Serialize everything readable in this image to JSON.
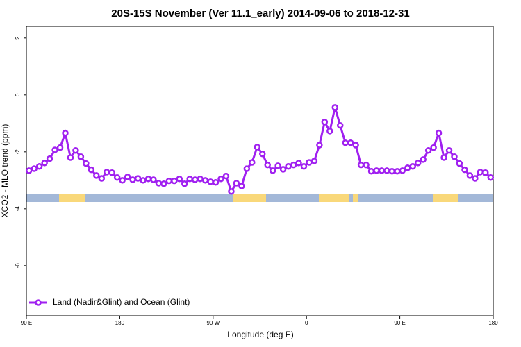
{
  "chart_data": {
    "type": "line",
    "title": "20S-15S November (Ver 11.1_early)   2014-09-06 to 2018-12-31",
    "x_label": "Longitude (deg E)",
    "y_label": "XCO2 - MLO trend (ppm)",
    "xlim": [
      90,
      540
    ],
    "ylim": [
      -7.76,
      2.41
    ],
    "xticks": [
      {
        "value": 90,
        "label": "90 E"
      },
      180,
      {
        "value": 270,
        "label": "90 W"
      },
      {
        "value": 360,
        "label": "0"
      },
      {
        "value": 450,
        "label": "90 E"
      },
      {
        "value": 540,
        "label": "180"
      }
    ],
    "yticks": [
      2,
      0,
      -2,
      -4,
      -6
    ],
    "legend": "bottom-left",
    "x": [
      92.5,
      97.5,
      102.5,
      107.5,
      112.5,
      117.5,
      122.5,
      127.5,
      132.5,
      137.5,
      142.5,
      147.5,
      152.5,
      157.5,
      162.5,
      167.5,
      172.5,
      177.5,
      182.5,
      187.5,
      192.5,
      197.5,
      202.5,
      207.5,
      212.5,
      217.5,
      222.5,
      227.5,
      232.5,
      237.5,
      242.5,
      247.5,
      252.5,
      257.5,
      262.5,
      267.5,
      272.5,
      277.5,
      282.5,
      287.5,
      292.5,
      297.5,
      302.5,
      307.5,
      312.5,
      317.5,
      322.5,
      327.5,
      332.5,
      337.5,
      342.5,
      347.5,
      352.5,
      357.5,
      362.5,
      367.5,
      372.5,
      377.5,
      382.5,
      387.5,
      392.5,
      397.5,
      402.5,
      407.5,
      412.5,
      417.5,
      422.5,
      427.5,
      432.5,
      437.5,
      442.5,
      447.5,
      452.5,
      457.5,
      462.5,
      467.5,
      472.5,
      477.5,
      482.5,
      487.5,
      492.5,
      497.5,
      502.5,
      507.5,
      512.5,
      517.5,
      522.5,
      527.5,
      532.5,
      537.5
    ],
    "series": [
      {
        "name": "Land (Nadir&Glint) and Ocean (Glint)",
        "color": "#a020f0",
        "values": [
          -2.66,
          -2.59,
          -2.51,
          -2.39,
          -2.24,
          -1.93,
          -1.85,
          -1.34,
          -2.2,
          -1.95,
          -2.17,
          -2.41,
          -2.63,
          -2.83,
          -2.93,
          -2.71,
          -2.73,
          -2.9,
          -3.0,
          -2.88,
          -2.98,
          -2.93,
          -3.0,
          -2.95,
          -2.98,
          -3.1,
          -3.12,
          -3.02,
          -3.02,
          -2.95,
          -3.12,
          -2.95,
          -2.98,
          -2.95,
          -3.0,
          -3.05,
          -3.07,
          -2.95,
          -2.85,
          -3.39,
          -3.1,
          -3.2,
          -2.59,
          -2.37,
          -1.83,
          -2.07,
          -2.46,
          -2.66,
          -2.49,
          -2.61,
          -2.51,
          -2.46,
          -2.39,
          -2.51,
          -2.37,
          -2.32,
          -1.76,
          -0.95,
          -1.27,
          -0.44,
          -1.07,
          -1.68,
          -1.68,
          -1.76,
          -2.46,
          -2.46,
          -2.68,
          -2.66,
          -2.66,
          -2.66,
          -2.68,
          -2.68,
          -2.66,
          -2.56,
          -2.51,
          -2.39,
          -2.27,
          -1.95,
          -1.85,
          -1.34,
          -2.2,
          -1.95,
          -2.17,
          -2.41,
          -2.63,
          -2.83,
          -2.93,
          -2.71,
          -2.73,
          -2.9
        ]
      }
    ]
  }
}
